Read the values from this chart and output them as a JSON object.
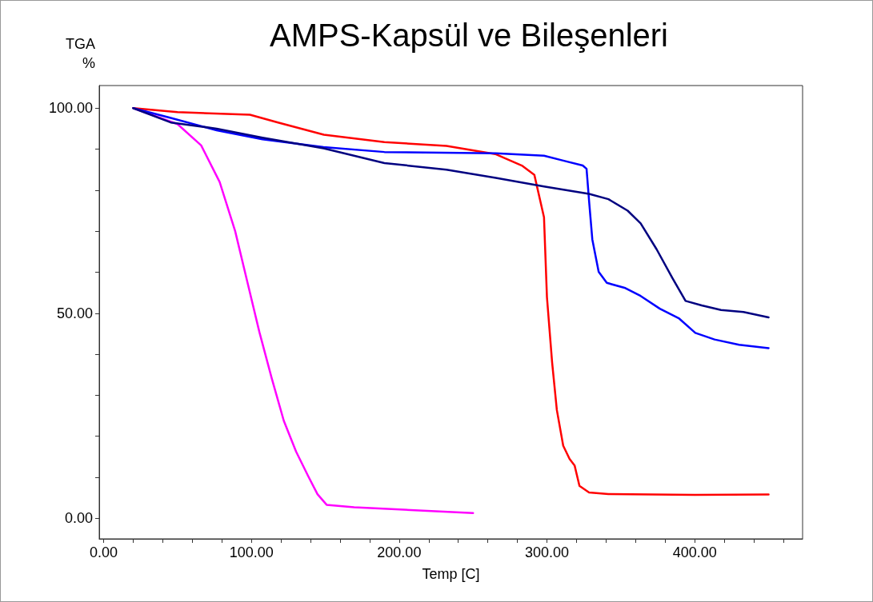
{
  "chart_data": {
    "type": "line",
    "title": "AMPS-Kapsül ve Bileşenleri",
    "xlabel": "Temp [C]",
    "ylabel": "TGA\n%",
    "xlim": [
      -3,
      473
    ],
    "ylim": [
      -5,
      105.5
    ],
    "xticks": [
      {
        "value": 0,
        "label": "0.00"
      },
      {
        "value": 20,
        "label": null
      },
      {
        "value": 40,
        "label": null
      },
      {
        "value": 60,
        "label": null
      },
      {
        "value": 80,
        "label": null
      },
      {
        "value": 100,
        "label": "100.00"
      },
      {
        "value": 120,
        "label": null
      },
      {
        "value": 140,
        "label": null
      },
      {
        "value": 160,
        "label": null
      },
      {
        "value": 180,
        "label": null
      },
      {
        "value": 200,
        "label": "200.00"
      },
      {
        "value": 220,
        "label": null
      },
      {
        "value": 240,
        "label": null
      },
      {
        "value": 260,
        "label": null
      },
      {
        "value": 280,
        "label": null
      },
      {
        "value": 300,
        "label": "300.00"
      },
      {
        "value": 320,
        "label": null
      },
      {
        "value": 340,
        "label": null
      },
      {
        "value": 360,
        "label": null
      },
      {
        "value": 380,
        "label": null
      },
      {
        "value": 400,
        "label": "400.00"
      },
      {
        "value": 420,
        "label": null
      },
      {
        "value": 440,
        "label": null
      },
      {
        "value": 460,
        "label": null
      }
    ],
    "yticks": [
      {
        "value": 0,
        "label": "0.00"
      },
      {
        "value": 10,
        "label": null
      },
      {
        "value": 20,
        "label": null
      },
      {
        "value": 30,
        "label": null
      },
      {
        "value": 40,
        "label": null
      },
      {
        "value": 50,
        "label": "50.00"
      },
      {
        "value": 60,
        "label": null
      },
      {
        "value": 70,
        "label": null
      },
      {
        "value": 80,
        "label": null
      },
      {
        "value": 90,
        "label": null
      },
      {
        "value": 100,
        "label": "100.00"
      }
    ],
    "series": [
      {
        "color": "#ff00ff",
        "x": [
          20,
          50,
          66,
          78.5,
          89,
          97,
          105.4,
          113.7,
          121.9,
          130.2,
          138.4,
          144.7,
          150.9,
          169.5,
          250
        ],
        "values": [
          100,
          96.1,
          90.9,
          82,
          70,
          58,
          45.4,
          34.2,
          23.8,
          16.3,
          10.3,
          5.9,
          3.3,
          2.7,
          1.3
        ]
      },
      {
        "color": "#ff0000",
        "x": [
          20,
          50,
          99,
          118,
          149,
          190,
          232,
          265,
          283,
          291.5,
          298,
          300,
          303.5,
          306.7,
          311,
          315.3,
          318.7,
          322,
          328.5,
          341.6,
          400,
          450
        ],
        "values": [
          100,
          99,
          98.4,
          96.5,
          93.5,
          91.7,
          90.8,
          88.8,
          86,
          83.7,
          73.4,
          53.9,
          38,
          26.4,
          17.7,
          14.5,
          12.9,
          7.9,
          6.3,
          5.9,
          5.7,
          5.8
        ]
      },
      {
        "color": "#0000ff",
        "x": [
          20,
          45.4,
          76.5,
          107.5,
          148.8,
          190,
          265.4,
          298,
          311,
          324.2,
          326.8,
          328.5,
          330.7,
          335,
          340.5,
          352.5,
          363.4,
          376.4,
          389.5,
          400.4,
          413.4,
          430,
          450
        ],
        "values": [
          100,
          97.6,
          94.6,
          92.4,
          90.5,
          89.3,
          89,
          88.4,
          87.2,
          86,
          85.2,
          77.4,
          68,
          60.1,
          57.4,
          56.2,
          54.2,
          51.1,
          48.7,
          45.2,
          43.6,
          42.3,
          41.5
        ]
      },
      {
        "color": "#000080",
        "x": [
          20,
          45.4,
          76.5,
          107.5,
          148.8,
          190,
          232,
          265.4,
          298,
          328.5,
          341.6,
          354.6,
          363.4,
          374.2,
          385,
          393.8,
          404.7,
          417.8,
          433,
          450
        ],
        "values": [
          100,
          96.5,
          95,
          92.8,
          90.2,
          86.6,
          85,
          83,
          80.9,
          79.1,
          77.8,
          75,
          71.9,
          65.6,
          58.5,
          53,
          51.9,
          50.8,
          50.3,
          49
        ]
      }
    ]
  }
}
